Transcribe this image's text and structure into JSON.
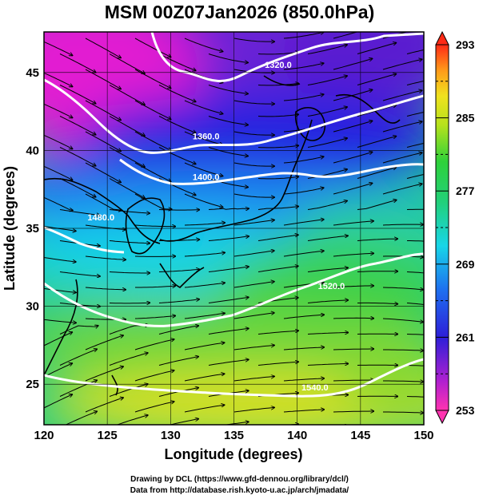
{
  "title": "MSM 00Z07Jan2026 (850.0hPa)",
  "map": {
    "xlabel": "Longitude (degrees)",
    "ylabel": "Latitude  (degrees)",
    "lon_range": [
      120,
      150
    ],
    "lat_range": [
      22.4,
      47.6
    ],
    "lon_ticks": [
      "120",
      "125",
      "130",
      "135",
      "140",
      "145",
      "150"
    ],
    "lat_ticks": [
      "25",
      "30",
      "35",
      "40",
      "45"
    ],
    "grid": true,
    "field": "temperature (K) shaded, geopotential height contours, wind streamlines",
    "contours": [
      {
        "label": "1320.0",
        "lon": 138.5,
        "lat": 45.3
      },
      {
        "label": "1360.0",
        "lon": 132.8,
        "lat": 40.7
      },
      {
        "label": "1400.0",
        "lon": 132.8,
        "lat": 38.1
      },
      {
        "label": "1480.0",
        "lon": 124.5,
        "lat": 35.5
      },
      {
        "label": "1520.0",
        "lon": 142.7,
        "lat": 31.1
      },
      {
        "label": "1540.0",
        "lon": 141.4,
        "lat": 24.6
      }
    ]
  },
  "colorbar": {
    "labels": [
      "293",
      "285",
      "277",
      "269",
      "261",
      "253"
    ],
    "min": 253,
    "max": 293
  },
  "credits": {
    "line1": "Drawing by DCL (https://www.gfd-dennou.org/library/dcl/)",
    "line2": "Data from http://database.rish.kyoto-u.ac.jp/arch/jmadata/"
  },
  "colors": {
    "cold": "#d400c8",
    "cool": "#2020e0",
    "mild": "#20d0e0",
    "warm": "#40d040",
    "hot": "#f0e020",
    "land": "#000000",
    "contour": "#ffffff"
  }
}
